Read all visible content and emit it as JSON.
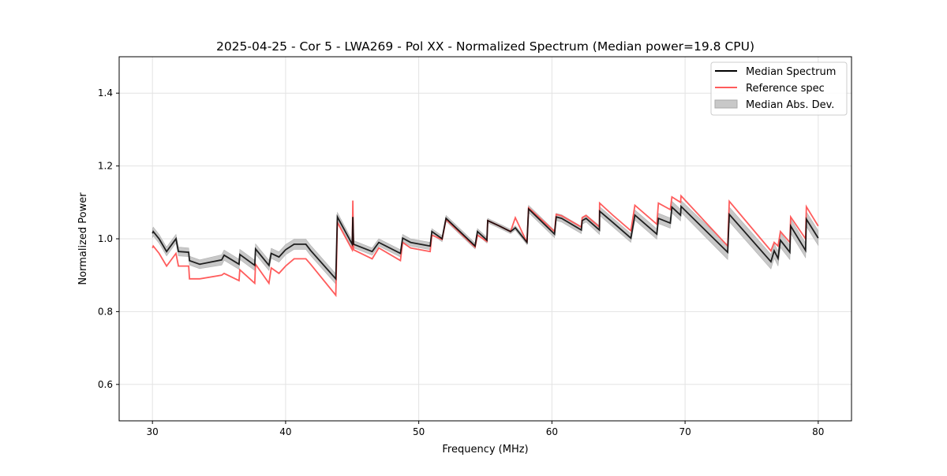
{
  "chart_data": {
    "type": "line",
    "title": "2025-04-25 - Cor 5 - LWA269 - Pol XX - Normalized Spectrum (Median power=19.8 CPU)",
    "xlabel": "Frequency (MHz)",
    "ylabel": "Normalized Power",
    "xlim": [
      27.5,
      82.5
    ],
    "ylim": [
      0.5,
      1.5
    ],
    "xticks": [
      30,
      40,
      50,
      60,
      70,
      80
    ],
    "yticks": [
      0.6,
      0.8,
      1.0,
      1.2,
      1.4
    ],
    "xtick_labels": [
      "30",
      "40",
      "50",
      "60",
      "70",
      "80"
    ],
    "ytick_labels": [
      "0.6",
      "0.8",
      "1.0",
      "1.2",
      "1.4"
    ],
    "grid": true,
    "legend_position": "top-right",
    "legend": [
      "Median Spectrum",
      "Reference spec",
      "Median Abs. Dev."
    ],
    "colors": {
      "median": "#000000",
      "reference": "#ff5c5c",
      "mad": "#c8c8c8"
    },
    "columns": [
      "frequency_mhz",
      "median",
      "reference",
      "mad"
    ],
    "points": [
      [
        30.0,
        1.015,
        0.975,
        0.012
      ],
      [
        30.06,
        1.02,
        0.98,
        0.012
      ],
      [
        30.5,
        1.0,
        0.96,
        0.012
      ],
      [
        31.06,
        0.965,
        0.925,
        0.012
      ],
      [
        31.77,
        1.0,
        0.96,
        0.012
      ],
      [
        31.95,
        0.965,
        0.925,
        0.012
      ],
      [
        32.72,
        0.963,
        0.925,
        0.012
      ],
      [
        32.78,
        0.94,
        0.89,
        0.012
      ],
      [
        33.55,
        0.93,
        0.89,
        0.012
      ],
      [
        35.2,
        0.942,
        0.9,
        0.014
      ],
      [
        35.38,
        0.955,
        0.905,
        0.014
      ],
      [
        36.5,
        0.93,
        0.885,
        0.014
      ],
      [
        36.56,
        0.957,
        0.915,
        0.014
      ],
      [
        37.68,
        0.927,
        0.878,
        0.014
      ],
      [
        37.74,
        0.972,
        0.93,
        0.014
      ],
      [
        38.75,
        0.927,
        0.878,
        0.014
      ],
      [
        38.92,
        0.96,
        0.92,
        0.014
      ],
      [
        39.5,
        0.95,
        0.905,
        0.014
      ],
      [
        40.0,
        0.97,
        0.925,
        0.014
      ],
      [
        40.64,
        0.985,
        0.945,
        0.014
      ],
      [
        41.52,
        0.985,
        0.945,
        0.014
      ],
      [
        41.88,
        0.968,
        0.93,
        0.014
      ],
      [
        43.77,
        0.89,
        0.845,
        0.014
      ],
      [
        43.89,
        1.06,
        1.045,
        0.012
      ],
      [
        45.0,
        0.985,
        0.97,
        0.01
      ],
      [
        45.05,
        1.06,
        1.105,
        0.01
      ],
      [
        45.1,
        0.985,
        0.97,
        0.01
      ],
      [
        46.5,
        0.965,
        0.945,
        0.01
      ],
      [
        47.0,
        0.99,
        0.975,
        0.01
      ],
      [
        48.62,
        0.96,
        0.94,
        0.01
      ],
      [
        48.79,
        1.002,
        0.99,
        0.01
      ],
      [
        49.39,
        0.99,
        0.975,
        0.01
      ],
      [
        50.86,
        0.98,
        0.965,
        0.01
      ],
      [
        50.98,
        1.02,
        1.01,
        0.008
      ],
      [
        51.75,
        1.0,
        0.998,
        0.008
      ],
      [
        52.05,
        1.056,
        1.053,
        0.008
      ],
      [
        54.23,
        0.98,
        0.977,
        0.008
      ],
      [
        54.41,
        1.02,
        1.01,
        0.008
      ],
      [
        55.12,
        0.996,
        0.993,
        0.008
      ],
      [
        55.18,
        1.05,
        1.05,
        0.006
      ],
      [
        56.06,
        1.035,
        1.035,
        0.006
      ],
      [
        56.89,
        1.02,
        1.02,
        0.006
      ],
      [
        57.25,
        1.03,
        1.058,
        0.006
      ],
      [
        58.13,
        0.99,
        0.99,
        0.006
      ],
      [
        58.25,
        1.082,
        1.085,
        0.01
      ],
      [
        60.2,
        1.013,
        1.02,
        0.01
      ],
      [
        60.32,
        1.06,
        1.067,
        0.01
      ],
      [
        60.73,
        1.056,
        1.063,
        0.01
      ],
      [
        62.21,
        1.024,
        1.032,
        0.01
      ],
      [
        62.27,
        1.05,
        1.058,
        0.01
      ],
      [
        62.57,
        1.056,
        1.064,
        0.01
      ],
      [
        63.57,
        1.024,
        1.032,
        0.012
      ],
      [
        63.58,
        1.076,
        1.098,
        0.012
      ],
      [
        64.57,
        1.045,
        1.065,
        0.012
      ],
      [
        65.93,
        1.002,
        1.022,
        0.012
      ],
      [
        66.23,
        1.065,
        1.092,
        0.014
      ],
      [
        67.88,
        1.013,
        1.04,
        0.014
      ],
      [
        68.0,
        1.056,
        1.098,
        0.014
      ],
      [
        68.89,
        1.043,
        1.08,
        0.014
      ],
      [
        69.01,
        1.087,
        1.115,
        0.016
      ],
      [
        69.66,
        1.065,
        1.1,
        0.016
      ],
      [
        69.7,
        1.089,
        1.118,
        0.016
      ],
      [
        73.2,
        0.963,
        0.98,
        0.02
      ],
      [
        73.32,
        1.067,
        1.103,
        0.02
      ],
      [
        76.45,
        0.937,
        0.967,
        0.02
      ],
      [
        76.69,
        0.967,
        0.99,
        0.02
      ],
      [
        76.98,
        0.946,
        0.98,
        0.02
      ],
      [
        77.16,
        0.996,
        1.02,
        0.02
      ],
      [
        77.87,
        0.963,
        0.99,
        0.02
      ],
      [
        77.93,
        1.035,
        1.06,
        0.02
      ],
      [
        79.05,
        0.968,
        1.0,
        0.02
      ],
      [
        79.11,
        1.054,
        1.088,
        0.02
      ],
      [
        80.0,
        1.002,
        1.035,
        0.02
      ]
    ]
  }
}
